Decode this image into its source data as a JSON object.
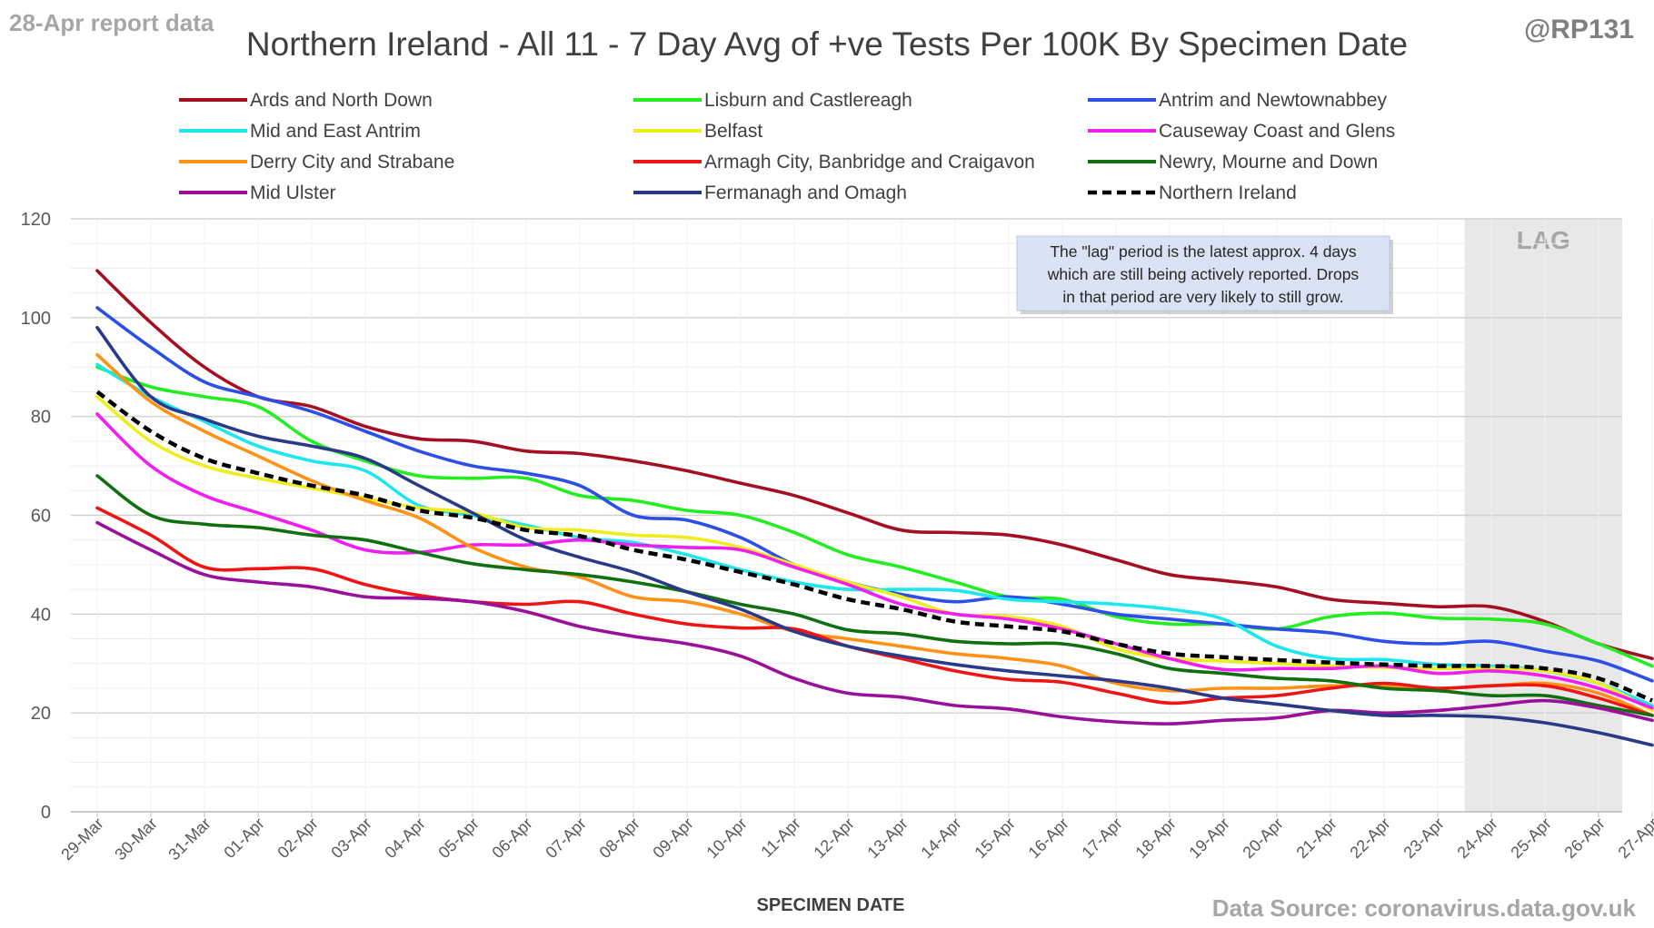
{
  "report_label": "28-Apr report data",
  "handle": "@RP131",
  "source_note": "Data Source: coronavirus.data.gov.uk",
  "lag_callout": [
    "The \"lag\" period is the latest approx. 4 days",
    "which are still being actively reported. Drops",
    "in that period are very likely to still grow."
  ],
  "chart_data": {
    "type": "line",
    "title": "Northern Ireland - All 11 - 7 Day Avg of +ve Tests Per 100K By Specimen Date",
    "xlabel": "SPECIMEN DATE",
    "ylabel": "",
    "ylim": [
      0,
      120
    ],
    "yticks": [
      0,
      20,
      40,
      60,
      80,
      100,
      120
    ],
    "grid": true,
    "legend_position": "top",
    "lag_label": "LAG",
    "lag_start": "24-Apr",
    "categories": [
      "29-Mar",
      "30-Mar",
      "31-Mar",
      "01-Apr",
      "02-Apr",
      "03-Apr",
      "04-Apr",
      "05-Apr",
      "06-Apr",
      "07-Apr",
      "08-Apr",
      "09-Apr",
      "10-Apr",
      "11-Apr",
      "12-Apr",
      "13-Apr",
      "14-Apr",
      "15-Apr",
      "16-Apr",
      "17-Apr",
      "18-Apr",
      "19-Apr",
      "20-Apr",
      "21-Apr",
      "22-Apr",
      "23-Apr",
      "24-Apr",
      "25-Apr",
      "26-Apr",
      "27-Apr"
    ],
    "series": [
      {
        "name": "Ards and North Down",
        "color": "#a50f22",
        "dashed": false,
        "values": [
          109.5,
          99,
          90,
          84,
          82,
          78,
          75.5,
          75,
          73,
          72.5,
          71,
          69,
          66.5,
          64,
          60.5,
          57,
          56.5,
          56,
          54,
          51,
          48,
          46.8,
          45.5,
          43,
          42.2,
          41.5,
          41.5,
          38.5,
          34,
          31
        ]
      },
      {
        "name": "Lisburn and Castlereagh",
        "color": "#22ee22",
        "dashed": false,
        "values": [
          90,
          86,
          84,
          82,
          75,
          71,
          68,
          67.5,
          67.5,
          64,
          63,
          61,
          60,
          56.5,
          52,
          49.5,
          46.5,
          43.5,
          43,
          39.5,
          38,
          38,
          37,
          39.5,
          40.2,
          39.2,
          39,
          38,
          34,
          29.5
        ]
      },
      {
        "name": "Antrim and Newtownabbey",
        "color": "#2e4ee8",
        "dashed": false,
        "values": [
          102,
          94,
          87,
          84,
          81,
          77,
          73,
          70,
          68.5,
          66,
          60,
          59,
          55.5,
          50,
          46.5,
          44,
          42.5,
          43.5,
          42,
          40,
          39,
          38,
          37,
          36.2,
          34.5,
          34,
          34.5,
          32.5,
          30.5,
          26.5
        ]
      },
      {
        "name": "Mid and East Antrim",
        "color": "#1ee6ee",
        "dashed": false,
        "values": [
          90.5,
          84,
          79,
          74,
          71,
          69,
          62,
          60,
          58,
          55.5,
          54.5,
          52,
          49,
          46.5,
          45,
          45,
          44.8,
          43,
          42.5,
          42,
          41,
          39,
          33.5,
          31,
          30.8,
          29.8,
          29.5,
          28.5,
          26,
          21.5
        ]
      },
      {
        "name": "Belfast",
        "color": "#eeee1e",
        "dashed": false,
        "values": [
          84,
          75,
          70,
          67.5,
          65.5,
          63.5,
          61.5,
          60.5,
          57.5,
          57,
          56,
          55.5,
          53.5,
          50,
          46.5,
          43.5,
          40,
          39.5,
          37.5,
          33,
          31,
          30.5,
          30,
          29.5,
          29.2,
          29,
          29,
          28.5,
          26,
          20.5
        ]
      },
      {
        "name": "Causeway Coast and Glens",
        "color": "#f01ef0",
        "dashed": false,
        "values": [
          80.5,
          70,
          64,
          60.5,
          57,
          53,
          52.5,
          54,
          54,
          55,
          54,
          53.5,
          53,
          49.5,
          46,
          42,
          40,
          39,
          37,
          34,
          31,
          28.8,
          29,
          29,
          29.5,
          28,
          28.5,
          27.5,
          25,
          21
        ]
      },
      {
        "name": "Derry City and Strabane",
        "color": "#ff9115",
        "dashed": false,
        "values": [
          92.5,
          83,
          77,
          72,
          67,
          63,
          59.5,
          53.5,
          49.5,
          47.5,
          43.5,
          42.5,
          40,
          36.5,
          35,
          33.5,
          32,
          31,
          29.5,
          26,
          24.5,
          25,
          25,
          25.5,
          25.5,
          25,
          25.5,
          26,
          24,
          19.5
        ]
      },
      {
        "name": "Armagh City, Banbridge and Craigavon",
        "color": "#f01515",
        "dashed": false,
        "values": [
          61.5,
          56,
          49.5,
          49.2,
          49.2,
          46,
          43.8,
          42.5,
          42,
          42.5,
          40,
          38,
          37.2,
          37,
          33.5,
          31,
          28.5,
          26.8,
          26.2,
          24,
          22,
          23,
          23.5,
          25,
          26,
          25,
          25.5,
          25.5,
          23,
          19.5
        ]
      },
      {
        "name": "Newry, Mourne and Down",
        "color": "#107010",
        "dashed": false,
        "values": [
          68,
          60,
          58.2,
          57.5,
          56,
          55,
          52.5,
          50.2,
          49,
          48,
          46.5,
          44.5,
          42,
          40,
          36.8,
          36,
          34.5,
          34,
          34,
          32,
          29,
          28,
          27,
          26.5,
          25,
          24.5,
          23.5,
          23.5,
          21.5,
          19.5
        ]
      },
      {
        "name": "Mid Ulster",
        "color": "#9a109a",
        "dashed": false,
        "values": [
          58.5,
          53,
          48,
          46.5,
          45.5,
          43.5,
          43.2,
          42.5,
          40.5,
          37.5,
          35.5,
          34,
          31.5,
          27,
          24,
          23.2,
          21.5,
          20.8,
          19.2,
          18.2,
          17.8,
          18.5,
          19,
          20.5,
          20,
          20.5,
          21.5,
          22.5,
          21,
          18.5
        ]
      },
      {
        "name": "Fermanagh and Omagh",
        "color": "#2a3a88",
        "dashed": false,
        "values": [
          98,
          84,
          79.5,
          76,
          74,
          71.5,
          66,
          60.5,
          55,
          51.5,
          48.5,
          44.5,
          41,
          36.5,
          33.5,
          31.5,
          29.8,
          28.5,
          27.5,
          26.5,
          25,
          23,
          21.8,
          20.5,
          19.5,
          19.5,
          19.2,
          18,
          16,
          13.5
        ]
      },
      {
        "name": "Northern Ireland",
        "color": "#000000",
        "dashed": true,
        "values": [
          85,
          77,
          71.5,
          68.5,
          66,
          64,
          61,
          59.5,
          57,
          55.8,
          53,
          51,
          48.5,
          46,
          43,
          41,
          38.5,
          37.5,
          36.5,
          34,
          32,
          31.3,
          30.7,
          30.2,
          29.8,
          29.5,
          29.5,
          29,
          27,
          22.5
        ]
      }
    ]
  }
}
